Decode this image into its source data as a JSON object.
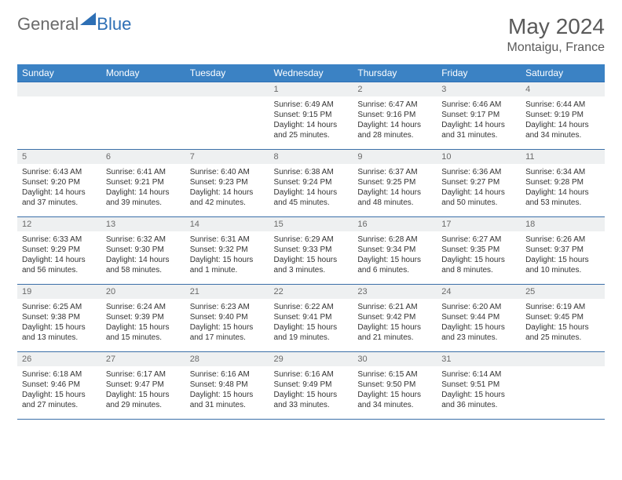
{
  "brand": {
    "part1": "General",
    "part2": "Blue"
  },
  "title": "May 2024",
  "location": "Montaigu, France",
  "colors": {
    "header_bg": "#3b82c4",
    "header_text": "#ffffff",
    "daynum_bg": "#eef0f1",
    "daynum_text": "#6a6a6a",
    "row_border": "#3b6fa8",
    "brand_gray": "#6a6a6a",
    "brand_blue": "#2d6fb5"
  },
  "weekdays": [
    "Sunday",
    "Monday",
    "Tuesday",
    "Wednesday",
    "Thursday",
    "Friday",
    "Saturday"
  ],
  "weeks": [
    [
      {
        "n": "",
        "sun": "",
        "set": "",
        "day": ""
      },
      {
        "n": "",
        "sun": "",
        "set": "",
        "day": ""
      },
      {
        "n": "",
        "sun": "",
        "set": "",
        "day": ""
      },
      {
        "n": "1",
        "sun": "Sunrise: 6:49 AM",
        "set": "Sunset: 9:15 PM",
        "day": "Daylight: 14 hours and 25 minutes."
      },
      {
        "n": "2",
        "sun": "Sunrise: 6:47 AM",
        "set": "Sunset: 9:16 PM",
        "day": "Daylight: 14 hours and 28 minutes."
      },
      {
        "n": "3",
        "sun": "Sunrise: 6:46 AM",
        "set": "Sunset: 9:17 PM",
        "day": "Daylight: 14 hours and 31 minutes."
      },
      {
        "n": "4",
        "sun": "Sunrise: 6:44 AM",
        "set": "Sunset: 9:19 PM",
        "day": "Daylight: 14 hours and 34 minutes."
      }
    ],
    [
      {
        "n": "5",
        "sun": "Sunrise: 6:43 AM",
        "set": "Sunset: 9:20 PM",
        "day": "Daylight: 14 hours and 37 minutes."
      },
      {
        "n": "6",
        "sun": "Sunrise: 6:41 AM",
        "set": "Sunset: 9:21 PM",
        "day": "Daylight: 14 hours and 39 minutes."
      },
      {
        "n": "7",
        "sun": "Sunrise: 6:40 AM",
        "set": "Sunset: 9:23 PM",
        "day": "Daylight: 14 hours and 42 minutes."
      },
      {
        "n": "8",
        "sun": "Sunrise: 6:38 AM",
        "set": "Sunset: 9:24 PM",
        "day": "Daylight: 14 hours and 45 minutes."
      },
      {
        "n": "9",
        "sun": "Sunrise: 6:37 AM",
        "set": "Sunset: 9:25 PM",
        "day": "Daylight: 14 hours and 48 minutes."
      },
      {
        "n": "10",
        "sun": "Sunrise: 6:36 AM",
        "set": "Sunset: 9:27 PM",
        "day": "Daylight: 14 hours and 50 minutes."
      },
      {
        "n": "11",
        "sun": "Sunrise: 6:34 AM",
        "set": "Sunset: 9:28 PM",
        "day": "Daylight: 14 hours and 53 minutes."
      }
    ],
    [
      {
        "n": "12",
        "sun": "Sunrise: 6:33 AM",
        "set": "Sunset: 9:29 PM",
        "day": "Daylight: 14 hours and 56 minutes."
      },
      {
        "n": "13",
        "sun": "Sunrise: 6:32 AM",
        "set": "Sunset: 9:30 PM",
        "day": "Daylight: 14 hours and 58 minutes."
      },
      {
        "n": "14",
        "sun": "Sunrise: 6:31 AM",
        "set": "Sunset: 9:32 PM",
        "day": "Daylight: 15 hours and 1 minute."
      },
      {
        "n": "15",
        "sun": "Sunrise: 6:29 AM",
        "set": "Sunset: 9:33 PM",
        "day": "Daylight: 15 hours and 3 minutes."
      },
      {
        "n": "16",
        "sun": "Sunrise: 6:28 AM",
        "set": "Sunset: 9:34 PM",
        "day": "Daylight: 15 hours and 6 minutes."
      },
      {
        "n": "17",
        "sun": "Sunrise: 6:27 AM",
        "set": "Sunset: 9:35 PM",
        "day": "Daylight: 15 hours and 8 minutes."
      },
      {
        "n": "18",
        "sun": "Sunrise: 6:26 AM",
        "set": "Sunset: 9:37 PM",
        "day": "Daylight: 15 hours and 10 minutes."
      }
    ],
    [
      {
        "n": "19",
        "sun": "Sunrise: 6:25 AM",
        "set": "Sunset: 9:38 PM",
        "day": "Daylight: 15 hours and 13 minutes."
      },
      {
        "n": "20",
        "sun": "Sunrise: 6:24 AM",
        "set": "Sunset: 9:39 PM",
        "day": "Daylight: 15 hours and 15 minutes."
      },
      {
        "n": "21",
        "sun": "Sunrise: 6:23 AM",
        "set": "Sunset: 9:40 PM",
        "day": "Daylight: 15 hours and 17 minutes."
      },
      {
        "n": "22",
        "sun": "Sunrise: 6:22 AM",
        "set": "Sunset: 9:41 PM",
        "day": "Daylight: 15 hours and 19 minutes."
      },
      {
        "n": "23",
        "sun": "Sunrise: 6:21 AM",
        "set": "Sunset: 9:42 PM",
        "day": "Daylight: 15 hours and 21 minutes."
      },
      {
        "n": "24",
        "sun": "Sunrise: 6:20 AM",
        "set": "Sunset: 9:44 PM",
        "day": "Daylight: 15 hours and 23 minutes."
      },
      {
        "n": "25",
        "sun": "Sunrise: 6:19 AM",
        "set": "Sunset: 9:45 PM",
        "day": "Daylight: 15 hours and 25 minutes."
      }
    ],
    [
      {
        "n": "26",
        "sun": "Sunrise: 6:18 AM",
        "set": "Sunset: 9:46 PM",
        "day": "Daylight: 15 hours and 27 minutes."
      },
      {
        "n": "27",
        "sun": "Sunrise: 6:17 AM",
        "set": "Sunset: 9:47 PM",
        "day": "Daylight: 15 hours and 29 minutes."
      },
      {
        "n": "28",
        "sun": "Sunrise: 6:16 AM",
        "set": "Sunset: 9:48 PM",
        "day": "Daylight: 15 hours and 31 minutes."
      },
      {
        "n": "29",
        "sun": "Sunrise: 6:16 AM",
        "set": "Sunset: 9:49 PM",
        "day": "Daylight: 15 hours and 33 minutes."
      },
      {
        "n": "30",
        "sun": "Sunrise: 6:15 AM",
        "set": "Sunset: 9:50 PM",
        "day": "Daylight: 15 hours and 34 minutes."
      },
      {
        "n": "31",
        "sun": "Sunrise: 6:14 AM",
        "set": "Sunset: 9:51 PM",
        "day": "Daylight: 15 hours and 36 minutes."
      },
      {
        "n": "",
        "sun": "",
        "set": "",
        "day": ""
      }
    ]
  ]
}
